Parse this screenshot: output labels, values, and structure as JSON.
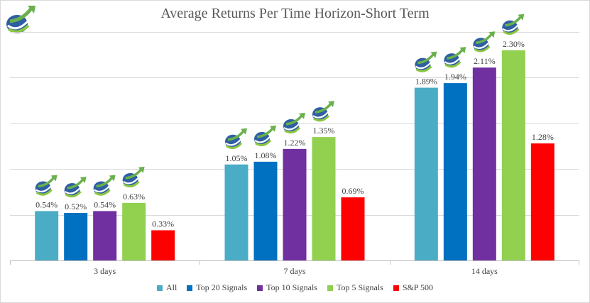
{
  "chart_data": {
    "type": "bar",
    "title": "Average Returns Per Time Horizon-Short Term",
    "xlabel": "",
    "ylabel": "",
    "categories": [
      "3 days",
      "7 days",
      "14 days"
    ],
    "series": [
      {
        "name": "All",
        "color": "#4BACC6",
        "values": [
          0.54,
          1.05,
          1.89
        ],
        "labels": [
          "0.54%",
          "1.05%",
          "1.89%"
        ]
      },
      {
        "name": "Top 20 Signals",
        "color": "#0070C0",
        "values": [
          0.52,
          1.08,
          1.94
        ],
        "labels": [
          "0.52%",
          "1.08%",
          "1.94%"
        ]
      },
      {
        "name": "Top 10 Signals",
        "color": "#7030A0",
        "values": [
          0.54,
          1.22,
          2.11
        ],
        "labels": [
          "0.54%",
          "1.22%",
          "2.11%"
        ]
      },
      {
        "name": "Top 5 Signals",
        "color": "#92D050",
        "values": [
          0.63,
          1.35,
          2.3
        ],
        "labels": [
          "0.63%",
          "1.35%",
          "2.30%"
        ]
      },
      {
        "name": "S&P 500",
        "color": "#FF0000",
        "values": [
          0.33,
          0.69,
          1.28
        ],
        "labels": [
          "0.33%",
          "0.69%",
          "1.28%"
        ]
      }
    ],
    "ylim": [
      0,
      2.5
    ],
    "grid": true,
    "legend": "bottom",
    "logo_icon": "rising-arrow-globe-icon",
    "bar_icon": "rising-arrow-globe-icon"
  }
}
